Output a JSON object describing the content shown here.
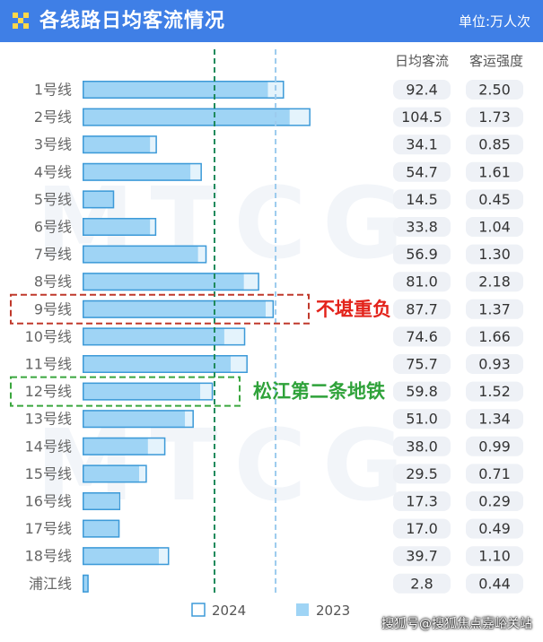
{
  "header": {
    "title": "各线路日均客流情况",
    "unit": "单位:万人次",
    "icon": "checker-flag-icon",
    "background": "#3f7fe6"
  },
  "columns": {
    "ridership": "日均客流",
    "intensity": "客运强度"
  },
  "watermark": "MTCG",
  "source": "搜狐号@搜狐焦点嘉峪关站",
  "colors": {
    "bar_2024_fill": "#9fd4f5",
    "bar_2024_border": "#3d9ad8",
    "bar_2023_fill": "#e4f3fc",
    "value_pill": "#eef1f6",
    "overload_box": "#c0392b",
    "overload_text": "#e3231b",
    "songjiang_box": "#3aa63e",
    "songjiang_text": "#2fa23a",
    "refline_2024": "#1f8a5c",
    "refline_2023": "#9ccbee"
  },
  "chart_data": {
    "type": "bar",
    "orientation": "horizontal",
    "categories": [
      "1号线",
      "2号线",
      "3号线",
      "4号线",
      "5号线",
      "6号线",
      "7号线",
      "8号线",
      "9号线",
      "10号线",
      "11号线",
      "12号线",
      "13号线",
      "14号线",
      "15号线",
      "16号线",
      "17号线",
      "18号线",
      "浦江线"
    ],
    "series": [
      {
        "name": "2024",
        "values": [
          92.4,
          104.5,
          34.1,
          54.7,
          14.5,
          33.8,
          56.9,
          81.0,
          87.7,
          74.6,
          75.7,
          59.8,
          51.0,
          38.0,
          29.5,
          17.3,
          17.0,
          39.7,
          2.8
        ]
      },
      {
        "name": "2023",
        "values": [
          85.0,
          95.0,
          31.0,
          49.5,
          14.0,
          31.0,
          53.0,
          74.0,
          84.0,
          65.0,
          68.0,
          54.0,
          47.0,
          30.0,
          26.0,
          16.5,
          16.5,
          35.0,
          2.5
        ]
      }
    ],
    "ridership_labels": [
      "92.4",
      "104.5",
      "34.1",
      "54.7",
      "14.5",
      "33.8",
      "56.9",
      "81.0",
      "87.7",
      "74.6",
      "75.7",
      "59.8",
      "51.0",
      "38.0",
      "29.5",
      "17.3",
      "17.0",
      "39.7",
      "2.8"
    ],
    "intensity": [
      "2.50",
      "1.73",
      "0.85",
      "1.61",
      "0.45",
      "1.04",
      "1.30",
      "2.18",
      "1.37",
      "1.66",
      "0.93",
      "1.52",
      "1.34",
      "0.99",
      "0.71",
      "0.29",
      "0.49",
      "1.10",
      "0.44"
    ],
    "xlim": [
      0,
      125
    ],
    "grid": false,
    "legend": {
      "position": "bottom",
      "items": [
        "2024",
        "2023"
      ]
    },
    "reference_lines": [
      {
        "value": 60.5,
        "style": "dashed",
        "color": "#1f8a5c"
      },
      {
        "value": 88.5,
        "style": "dashed",
        "color": "#9ccbee"
      }
    ],
    "annotations": [
      {
        "category": "9号线",
        "text": "不堪重负",
        "color": "#e3231b"
      },
      {
        "category": "12号线",
        "text": "松江第二条地铁",
        "color": "#2fa23a"
      }
    ]
  }
}
